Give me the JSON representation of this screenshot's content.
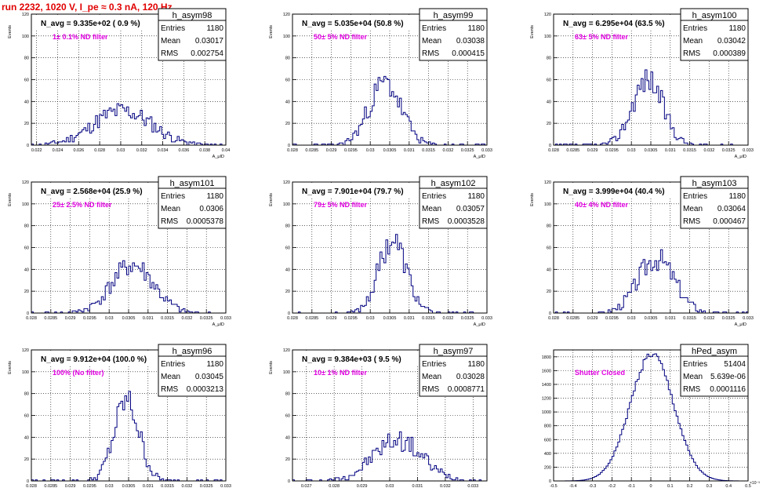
{
  "canvas_title": "run 2232,  1020 V, I_pe ≈ 0.3 nA, 120 Hz",
  "chart_data": [
    {
      "type": "bar",
      "hist": "h_asym98",
      "nav": "N_avg = 9.335e+02 ( 0.9 %)",
      "filter": "1± 0.1% ND filter",
      "stats": {
        "Entries": "1180",
        "Mean": "0.03017",
        "RMS": "0.002754"
      },
      "ylabel": "Events",
      "xlabel": "A_μID",
      "xlim": [
        0.0215,
        0.04
      ],
      "ylim": [
        0,
        120
      ],
      "xticks": [
        0.022,
        0.024,
        0.026,
        0.028,
        0.03,
        0.032,
        0.034,
        0.036,
        0.038,
        0.04
      ],
      "xtick_labels": [
        "0.022",
        "0.024",
        "0.026",
        "0.028",
        "0.03",
        "0.032",
        "0.034",
        "0.036",
        "0.038",
        "0.04"
      ],
      "yticks": [
        0,
        20,
        40,
        60,
        80,
        100,
        120
      ],
      "gen": {
        "mean": 0.03017,
        "rms": 0.002754,
        "n": 1180,
        "seed": 11
      }
    },
    {
      "type": "bar",
      "hist": "h_asym99",
      "nav": "N_avg = 5.035e+04 (50.8 %)",
      "filter": "50± 5% ND filter",
      "stats": {
        "Entries": "1180",
        "Mean": "0.03038",
        "RMS": "0.000415"
      },
      "ylabel": "Events",
      "xlabel": "A_μID",
      "xlim": [
        0.028,
        0.033
      ],
      "ylim": [
        0,
        120
      ],
      "xticks": [
        0.028,
        0.0285,
        0.029,
        0.0295,
        0.03,
        0.0305,
        0.031,
        0.0315,
        0.032,
        0.0325,
        0.033
      ],
      "xtick_labels": [
        "0.028",
        "0.0285",
        "0.029",
        "0.0295",
        "0.03",
        "0.0305",
        "0.031",
        "0.0315",
        "0.032",
        "0.0325",
        "0.033"
      ],
      "yticks": [
        0,
        20,
        40,
        60,
        80,
        100,
        120
      ],
      "gen": {
        "mean": 0.03038,
        "rms": 0.000415,
        "n": 1180,
        "seed": 23
      }
    },
    {
      "type": "bar",
      "hist": "h_asym100",
      "nav": "N_avg = 6.295e+04 (63.5 %)",
      "filter": "63± 5% ND filter",
      "stats": {
        "Entries": "1180",
        "Mean": "0.03042",
        "RMS": "0.000389"
      },
      "ylabel": "Events",
      "xlabel": "A_μID",
      "xlim": [
        0.028,
        0.033
      ],
      "ylim": [
        0,
        120
      ],
      "xticks": [
        0.028,
        0.0285,
        0.029,
        0.0295,
        0.03,
        0.0305,
        0.031,
        0.0315,
        0.032,
        0.0325,
        0.033
      ],
      "xtick_labels": [
        "0.028",
        "0.0285",
        "0.029",
        "0.0295",
        "0.03",
        "0.0305",
        "0.031",
        "0.0315",
        "0.032",
        "0.0325",
        "0.033"
      ],
      "yticks": [
        0,
        20,
        40,
        60,
        80,
        100,
        120
      ],
      "gen": {
        "mean": 0.03042,
        "rms": 0.000389,
        "n": 1180,
        "seed": 37
      }
    },
    {
      "type": "bar",
      "hist": "h_asym101",
      "nav": "N_avg = 2.568e+04 (25.9 %)",
      "filter": "25± 2.5% ND filter",
      "stats": {
        "Entries": "1180",
        "Mean": "0.0306",
        "RMS": "0.0005378"
      },
      "ylabel": "Events",
      "xlabel": "A_μID",
      "xlim": [
        0.028,
        0.033
      ],
      "ylim": [
        0,
        120
      ],
      "xticks": [
        0.028,
        0.0285,
        0.029,
        0.0295,
        0.03,
        0.0305,
        0.031,
        0.0315,
        0.032,
        0.0325,
        0.033
      ],
      "xtick_labels": [
        "0.028",
        "0.0285",
        "0.029",
        "0.0295",
        "0.03",
        "0.0305",
        "0.031",
        "0.0315",
        "0.032",
        "0.0325",
        "0.033"
      ],
      "yticks": [
        0,
        20,
        40,
        60,
        80,
        100,
        120
      ],
      "gen": {
        "mean": 0.0306,
        "rms": 0.0005378,
        "n": 1180,
        "seed": 41
      }
    },
    {
      "type": "bar",
      "hist": "h_asym102",
      "nav": "N_avg = 7.901e+04 (79.7 %)",
      "filter": "79± 5% ND filter",
      "stats": {
        "Entries": "1180",
        "Mean": "0.03057",
        "RMS": "0.0003528"
      },
      "ylabel": "Events",
      "xlabel": "A_μID",
      "xlim": [
        0.028,
        0.033
      ],
      "ylim": [
        0,
        120
      ],
      "xticks": [
        0.028,
        0.0285,
        0.029,
        0.0295,
        0.03,
        0.0305,
        0.031,
        0.0315,
        0.032,
        0.0325,
        0.033
      ],
      "xtick_labels": [
        "0.028",
        "0.0285",
        "0.029",
        "0.0295",
        "0.03",
        "0.0305",
        "0.031",
        "0.0315",
        "0.032",
        "0.0325",
        "0.033"
      ],
      "yticks": [
        0,
        20,
        40,
        60,
        80,
        100,
        120
      ],
      "gen": {
        "mean": 0.03057,
        "rms": 0.0003528,
        "n": 1180,
        "seed": 53
      }
    },
    {
      "type": "bar",
      "hist": "h_asym103",
      "nav": "N_avg = 3.999e+04 (40.4 %)",
      "filter": "40± 4% ND filter",
      "stats": {
        "Entries": "1180",
        "Mean": "0.03064",
        "RMS": "0.000467"
      },
      "ylabel": "Events",
      "xlabel": "A_μID",
      "xlim": [
        0.028,
        0.033
      ],
      "ylim": [
        0,
        120
      ],
      "xticks": [
        0.028,
        0.0285,
        0.029,
        0.0295,
        0.03,
        0.0305,
        0.031,
        0.0315,
        0.032,
        0.0325,
        0.033
      ],
      "xtick_labels": [
        "0.028",
        "0.0285",
        "0.029",
        "0.0295",
        "0.03",
        "0.0305",
        "0.031",
        "0.0315",
        "0.032",
        "0.0325",
        "0.033"
      ],
      "yticks": [
        0,
        20,
        40,
        60,
        80,
        100,
        120
      ],
      "gen": {
        "mean": 0.03064,
        "rms": 0.000467,
        "n": 1180,
        "seed": 67
      }
    },
    {
      "type": "bar",
      "hist": "h_asym96",
      "nav": "N_avg = 9.912e+04 (100.0 %)",
      "filter": "100% (No filter)",
      "stats": {
        "Entries": "1180",
        "Mean": "0.03045",
        "RMS": "0.0003213"
      },
      "ylabel": "Events",
      "xlabel": "A_μID",
      "xlim": [
        0.028,
        0.033
      ],
      "ylim": [
        0,
        120
      ],
      "xticks": [
        0.028,
        0.0285,
        0.029,
        0.0295,
        0.03,
        0.0305,
        0.031,
        0.0315,
        0.032,
        0.0325,
        0.033
      ],
      "xtick_labels": [
        "0.028",
        "0.0285",
        "0.029",
        "0.0295",
        "0.03",
        "0.0305",
        "0.031",
        "0.0315",
        "0.032",
        "0.0325",
        "0.033"
      ],
      "yticks": [
        0,
        20,
        40,
        60,
        80,
        100,
        120
      ],
      "gen": {
        "mean": 0.03045,
        "rms": 0.0003213,
        "n": 1180,
        "seed": 79
      }
    },
    {
      "type": "bar",
      "hist": "h_asym97",
      "nav": "N_avg = 9.384e+03 ( 9.5 %)",
      "filter": "10± 1% ND filter",
      "stats": {
        "Entries": "1180",
        "Mean": "0.03028",
        "RMS": "0.0008771"
      },
      "ylabel": "Events",
      "xlabel": "A_μID",
      "xlim": [
        0.0265,
        0.0335
      ],
      "ylim": [
        0,
        120
      ],
      "xticks": [
        0.027,
        0.028,
        0.029,
        0.03,
        0.031,
        0.032,
        0.033
      ],
      "xtick_labels": [
        "0.027",
        "0.028",
        "0.029",
        "0.03",
        "0.031",
        "0.032",
        "0.033"
      ],
      "yticks": [
        0,
        20,
        40,
        60,
        80,
        100,
        120
      ],
      "gen": {
        "mean": 0.03028,
        "rms": 0.0008771,
        "n": 1180,
        "seed": 97
      }
    },
    {
      "type": "bar",
      "hist": "hPed_asym",
      "nav": "",
      "filter": "Shutter Closed",
      "stats": {
        "Entries": "51404",
        "Mean": "5.639e-06",
        "RMS": "0.0001116"
      },
      "ylabel": "",
      "xlabel": "",
      "xlim": [
        -0.5,
        0.5
      ],
      "ylim": [
        0,
        1900
      ],
      "xticks": [
        -0.5,
        -0.4,
        -0.3,
        -0.2,
        -0.1,
        0,
        0.1,
        0.2,
        0.3,
        0.4,
        0.5
      ],
      "xtick_labels": [
        "-0.5",
        "-0.4",
        "-0.3",
        "-0.2",
        "-0.1",
        "0",
        "0.1",
        "0.2",
        "0.3",
        "0.4",
        "0.5"
      ],
      "yticks": [
        0,
        200,
        400,
        600,
        800,
        1000,
        1200,
        1400,
        1600,
        1800
      ],
      "exponent": "×10⁻³",
      "gen": {
        "mean": 0.005639,
        "rms": 0.1116,
        "n": 51404,
        "seed": 0
      }
    }
  ],
  "colors": {
    "title": "#e00000",
    "filter_text": "#e000e0",
    "hist_line": "#000080",
    "grid": "#000000"
  }
}
